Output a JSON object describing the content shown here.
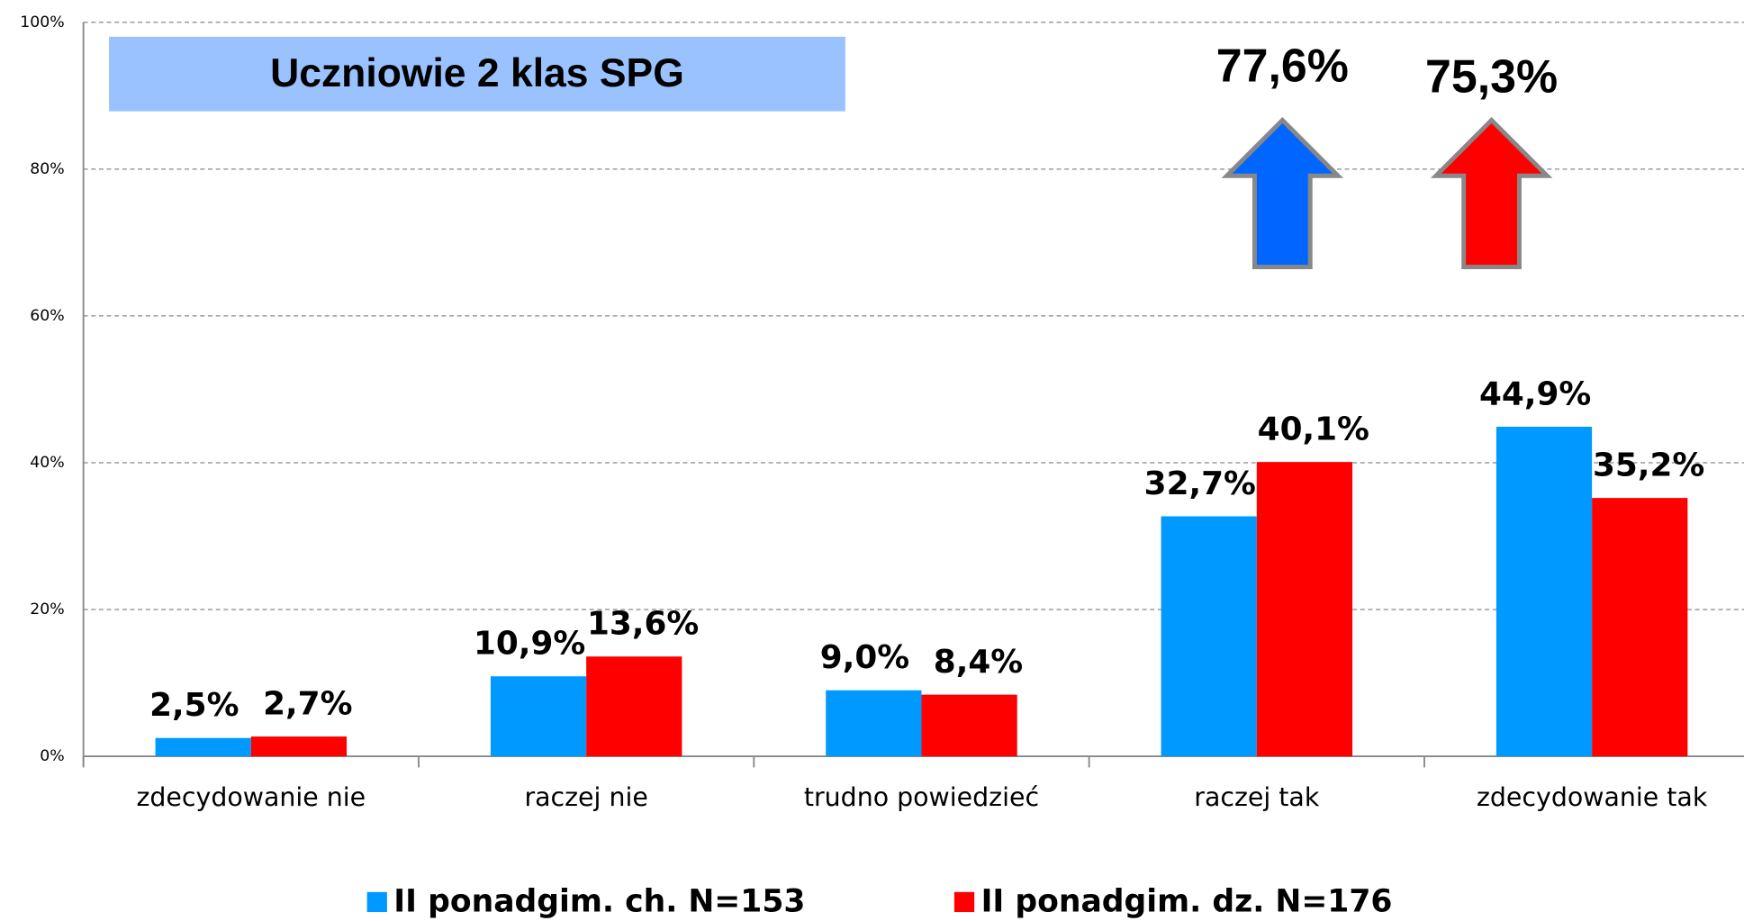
{
  "chart_data": {
    "type": "bar",
    "title": "Uczniowie 2 klas SPG",
    "categories": [
      "zdecydowanie nie",
      "raczej nie",
      "trudno powiedzieć",
      "raczej tak",
      "zdecydowanie tak"
    ],
    "series": [
      {
        "name": "II ponadgim. ch. N=153",
        "color": "#0099ff",
        "values": [
          2.5,
          10.9,
          9.0,
          32.7,
          44.9
        ],
        "value_labels": [
          "2,5%",
          "10,9%",
          "9,0%",
          "32,7%",
          "44,9%"
        ]
      },
      {
        "name": "II ponadgim. dz. N=176",
        "color": "#ff0000",
        "values": [
          2.7,
          13.6,
          8.4,
          40.1,
          35.2
        ],
        "value_labels": [
          "2,7%",
          "13,6%",
          "8,4%",
          "40,1%",
          "35,2%"
        ]
      }
    ],
    "ylim": [
      0,
      100
    ],
    "yticks": [
      {
        "value": 0,
        "label": "0%"
      },
      {
        "value": 20,
        "label": "20%"
      },
      {
        "value": 40,
        "label": "40%"
      },
      {
        "value": 60,
        "label": "60%"
      },
      {
        "value": 80,
        "label": "80%"
      },
      {
        "value": 100,
        "label": "100%"
      }
    ],
    "grid": true,
    "annotations": [
      {
        "text": "77,6%",
        "color": "#0066ff"
      },
      {
        "text": "75,3%",
        "color": "#ff0000"
      }
    ]
  }
}
